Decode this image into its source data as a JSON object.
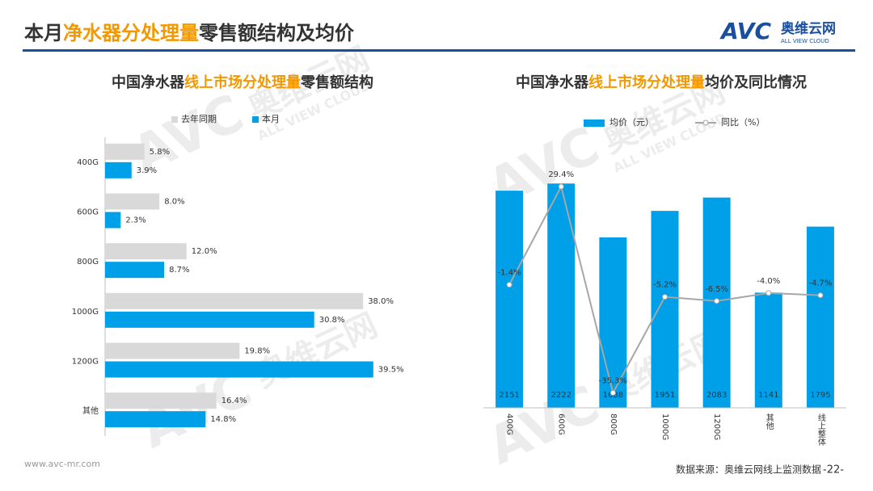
{
  "header": {
    "title": [
      "本月",
      "净水器分处理量",
      "零售额结构及均价"
    ],
    "logo": "AVC",
    "brand": "奥维云网",
    "brand_en": "ALL VIEW CLOUD"
  },
  "footer": {
    "url": "www.avc-mr.com",
    "source": "数据来源：奥维云网线上监测数据",
    "page": "-22-"
  },
  "chart_data": [
    {
      "type": "bar",
      "orientation": "horizontal",
      "title": [
        "中国净水器",
        "线上市场分处理量",
        "零售额结构"
      ],
      "categories": [
        "400G",
        "600G",
        "800G",
        "1000G",
        "1200G",
        "其他"
      ],
      "series": [
        {
          "name": "去年同期",
          "color": "#d9d9d9",
          "values": [
            5.8,
            8.0,
            12.0,
            38.0,
            19.8,
            16.4
          ],
          "value_labels": [
            "5.8%",
            "8.0%",
            "12.0%",
            "38.0%",
            "19.8%",
            "16.4%"
          ]
        },
        {
          "name": "本月",
          "color": "#00a0e9",
          "values": [
            3.9,
            2.3,
            8.7,
            30.8,
            39.5,
            14.8
          ],
          "value_labels": [
            "3.9%",
            "2.3%",
            "8.7%",
            "30.8%",
            "39.5%",
            "14.8%"
          ]
        }
      ],
      "xlim": [
        0,
        40
      ]
    },
    {
      "type": "bar",
      "title": [
        "中国净水器",
        "线上市场分处理量",
        "均价及同比情况"
      ],
      "categories": [
        "400G",
        "600G",
        "800G",
        "1000G",
        "1200G",
        "其他",
        "线上整体"
      ],
      "series": [
        {
          "name": "均价（元）",
          "color": "#00a0e9",
          "values": [
            2151,
            2222,
            1688,
            1951,
            2083,
            1141,
            1795
          ]
        },
        {
          "name": "同比（%）",
          "type": "line",
          "axis": "y2",
          "color": "#a6a6a6",
          "values": [
            -1.4,
            29.4,
            -35.3,
            -5.2,
            -6.5,
            -4.0,
            -4.7
          ],
          "value_labels": [
            "-1.4%",
            "29.4%",
            "-35.3%",
            "-5.2%",
            "-6.5%",
            "-4.0%",
            "-4.7%"
          ]
        }
      ],
      "ylim": [
        0,
        2400
      ],
      "y2lim": [
        -40,
        36
      ]
    }
  ]
}
